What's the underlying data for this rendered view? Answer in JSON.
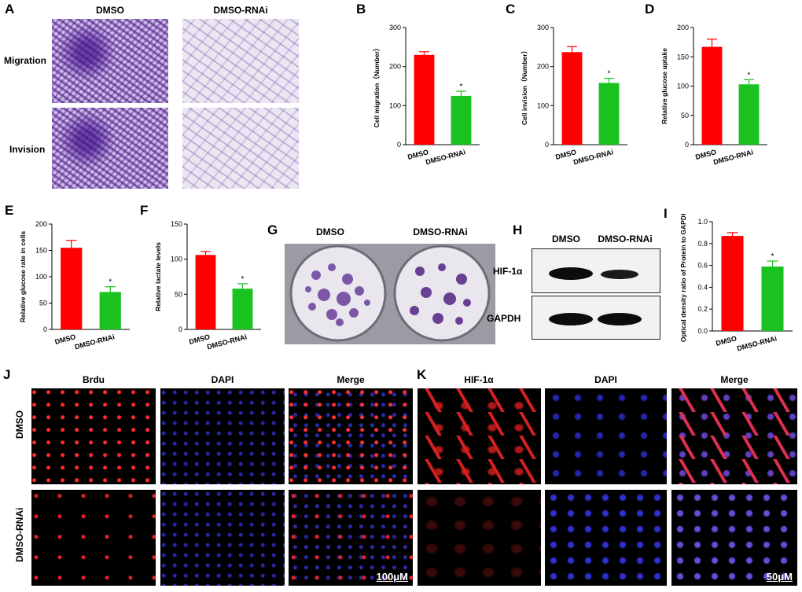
{
  "panel_letters": [
    "A",
    "B",
    "C",
    "D",
    "E",
    "F",
    "G",
    "H",
    "I",
    "J",
    "K"
  ],
  "panelA": {
    "col_headers": [
      "DMSO",
      "DMSO-RNAi"
    ],
    "row_labels": [
      "Migration",
      "Invision"
    ]
  },
  "panelG": {
    "col_headers": [
      "DMSO",
      "DMSO-RNAi"
    ]
  },
  "panelH": {
    "col_headers": [
      "DMSO",
      "DMSO-RNAi"
    ],
    "row_labels": [
      "HIF-1α",
      "GAPDH"
    ]
  },
  "panelJ": {
    "col_headers": [
      "Brdu",
      "DAPI",
      "Merge"
    ],
    "row_labels": [
      "DMSO",
      "DMSO-RNAi"
    ],
    "scale_bar": "100μM"
  },
  "panelK": {
    "col_headers": [
      "HIF-1α",
      "DAPI",
      "Merge"
    ],
    "scale_bar": "50μM"
  },
  "colors": {
    "dmso": "#ff0000",
    "rnai": "#19c21f"
  },
  "chart_data": [
    {
      "panel": "B",
      "type": "bar",
      "categories": [
        "DMSO",
        "DMSO-RNAi"
      ],
      "values": [
        230,
        125
      ],
      "errors": [
        8,
        12
      ],
      "ylabel": "Cell migration（Number）",
      "yticks": [
        0,
        100,
        200,
        300
      ],
      "ylim": [
        0,
        300
      ],
      "sig": [
        "",
        "*"
      ]
    },
    {
      "panel": "C",
      "type": "bar",
      "categories": [
        "DMSO",
        "DMSO-RNAi"
      ],
      "values": [
        237,
        158
      ],
      "errors": [
        14,
        12
      ],
      "ylabel": "Cell invision（Number）",
      "yticks": [
        0,
        100,
        200,
        300
      ],
      "ylim": [
        0,
        300
      ],
      "sig": [
        "",
        "*"
      ]
    },
    {
      "panel": "D",
      "type": "bar",
      "categories": [
        "DMSO",
        "DMSO-RNAi"
      ],
      "values": [
        167,
        103
      ],
      "errors": [
        13,
        8
      ],
      "ylabel": "Relative glucose uptake",
      "yticks": [
        0,
        50,
        100,
        150,
        200
      ],
      "ylim": [
        0,
        200
      ],
      "sig": [
        "",
        "*"
      ]
    },
    {
      "panel": "E",
      "type": "bar",
      "categories": [
        "DMSO",
        "DMSO-RNAi"
      ],
      "values": [
        155,
        71
      ],
      "errors": [
        14,
        10
      ],
      "ylabel": "Relative glucose rate in cells",
      "yticks": [
        0,
        50,
        100,
        150,
        200
      ],
      "ylim": [
        0,
        200
      ],
      "sig": [
        "",
        "*"
      ]
    },
    {
      "panel": "F",
      "type": "bar",
      "categories": [
        "DMSO",
        "DMSO-RNAi"
      ],
      "values": [
        106,
        58
      ],
      "errors": [
        5,
        7
      ],
      "ylabel": "Relative lactate levels",
      "yticks": [
        0,
        50,
        100,
        150
      ],
      "ylim": [
        0,
        150
      ],
      "sig": [
        "",
        "*"
      ]
    },
    {
      "panel": "I",
      "type": "bar",
      "categories": [
        "DMSO",
        "DMSO-RNAi"
      ],
      "values": [
        0.87,
        0.59
      ],
      "errors": [
        0.03,
        0.05
      ],
      "ylabel": "Optical density ratio of Protein to GAPDH",
      "yticks": [
        0.0,
        0.2,
        0.4,
        0.6,
        0.8,
        1.0
      ],
      "ylim": [
        0,
        1.0
      ],
      "sig": [
        "",
        "*"
      ]
    }
  ]
}
